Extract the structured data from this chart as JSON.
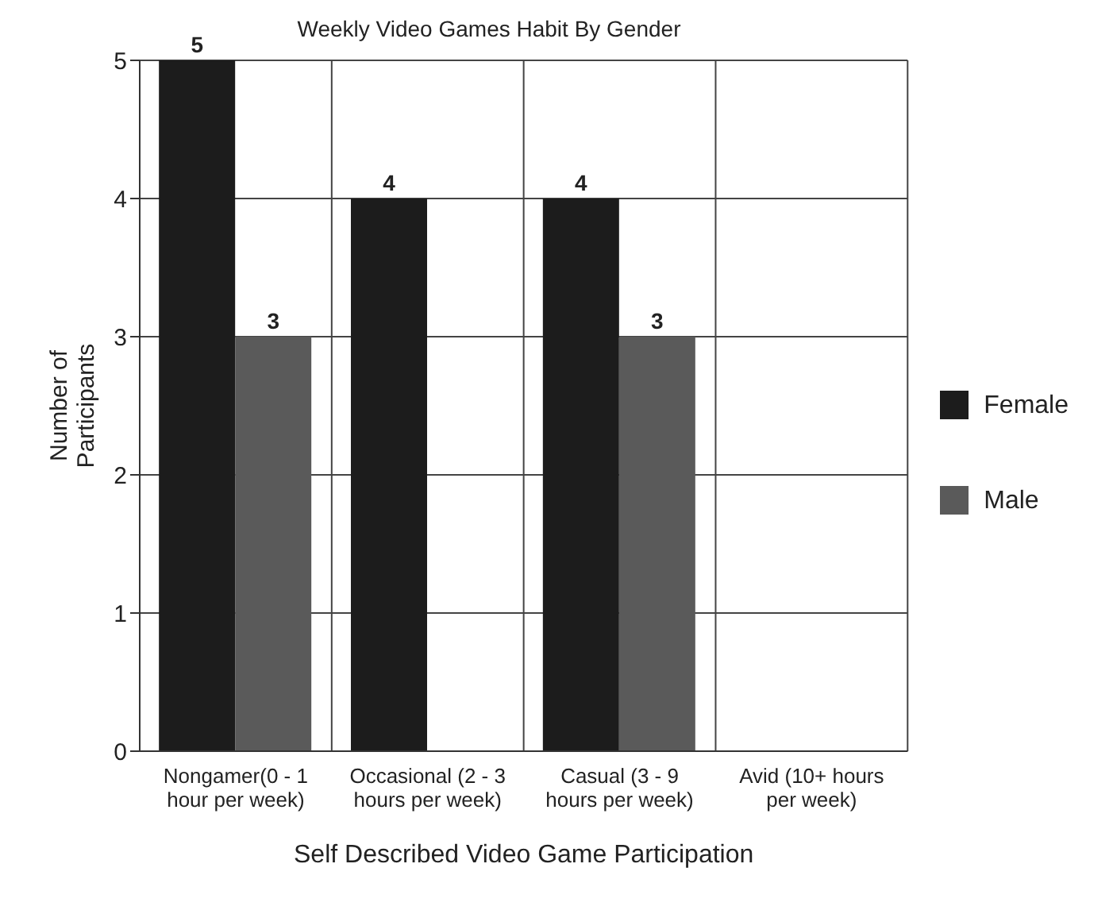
{
  "chart_data": {
    "type": "bar",
    "title": "Weekly Video Games Habit By Gender",
    "xlabel": "Self Described Video Game Participation",
    "ylabel": "Number of Participants",
    "categories": [
      "Nongamer(0 - 1 hour per week)",
      "Occasional (2 - 3 hours per week)",
      "Casual (3 - 9 hours per week)",
      "Avid (10+ hours per week)"
    ],
    "series": [
      {
        "name": "Female",
        "color": "#1c1c1c",
        "values": [
          5,
          4,
          4,
          null
        ]
      },
      {
        "name": "Male",
        "color": "#5a5a5a",
        "values": [
          3,
          null,
          3,
          null
        ]
      }
    ],
    "ylim": [
      0,
      5
    ],
    "yticks": [
      0,
      1,
      2,
      3,
      4,
      5
    ],
    "grid": true,
    "legend": "right",
    "data_labels": true
  }
}
